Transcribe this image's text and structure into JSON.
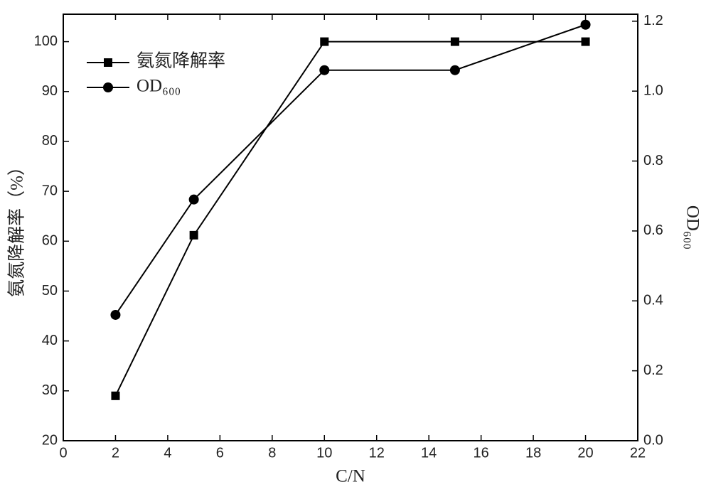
{
  "chart_data": {
    "type": "line",
    "x_label": "C/N",
    "y_label": "氨氮降解率（%）",
    "y2_label": "OD₆₀₀",
    "x": [
      2,
      5,
      10,
      15,
      20
    ],
    "series": [
      {
        "name": "氨氮降解率",
        "color": "#000000",
        "marker": "square",
        "values": [
          29,
          61.2,
          100,
          100,
          100
        ]
      },
      {
        "name": "OD₆₀₀",
        "color": "#000000",
        "marker": "circle",
        "axis": "y2",
        "values": [
          0.36,
          0.69,
          1.06,
          1.06,
          1.19
        ]
      }
    ],
    "xlim": [
      0,
      22
    ],
    "xticks": [
      0,
      2,
      4,
      6,
      8,
      10,
      12,
      14,
      16,
      18,
      20,
      22
    ],
    "ylim": [
      20,
      105.5
    ],
    "yticks": [
      20,
      30,
      40,
      50,
      60,
      70,
      80,
      90,
      100
    ],
    "y2lim": [
      0,
      1.22
    ],
    "y2ticks": [
      {
        "value": 0,
        "label": "0.0"
      },
      0.2,
      0.4,
      0.6,
      0.8,
      {
        "value": 1,
        "label": "1.0"
      },
      1.2
    ],
    "legend": "upper left"
  }
}
